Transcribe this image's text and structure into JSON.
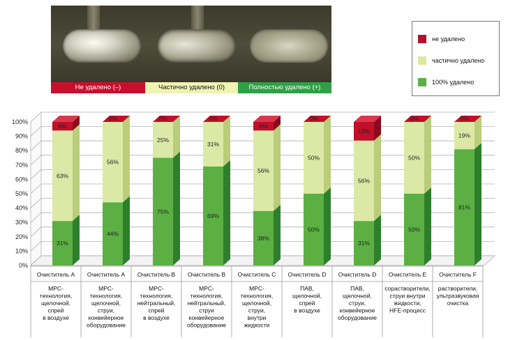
{
  "photo_labels": [
    {
      "text": "Не удалено (–)",
      "color": "#c8102e",
      "text_color": "#ffffff"
    },
    {
      "text": "Частично удалено (0)",
      "color": "#f0f3b3",
      "text_color": "#111111"
    },
    {
      "text": "Полностью удалено (+)",
      "color": "#2fa046",
      "text_color": "#ffffff"
    }
  ],
  "legend": [
    {
      "text": "не удалено",
      "color": "#b4102a"
    },
    {
      "text": "частично удалено",
      "color": "#dbe8a0"
    },
    {
      "text": "100% удалено",
      "color": "#5cb043"
    }
  ],
  "colors": {
    "red_front": "#c0102a",
    "red_side": "#8c0a1e",
    "red_top": "#d8384e",
    "light_front": "#dce9a6",
    "light_side": "#b9cd7a",
    "light_top": "#eef5c8",
    "green_front": "#5cb043",
    "green_side": "#2d7f2c",
    "green_top": "#7fc867",
    "grid": "#b0b0b0"
  },
  "chart_data": {
    "type": "bar",
    "stacked": true,
    "percent": true,
    "ylim": [
      0,
      100
    ],
    "yticks": [
      "0%",
      "10%",
      "20%",
      "30%",
      "40%",
      "50%",
      "60%",
      "70%",
      "80%",
      "90%",
      "100%"
    ],
    "categories": [
      {
        "name": "Очиститель A",
        "desc": [
          "MPC-",
          "технология,",
          "щелочной,",
          "спрей",
          "в воздухе"
        ]
      },
      {
        "name": "Очиститель A",
        "desc": [
          "MPC-",
          "технология,",
          "щелочной,",
          "струи,",
          "конвейерное",
          "оборудование"
        ]
      },
      {
        "name": "Очиститель B",
        "desc": [
          "MPC-",
          "технология,",
          "нейтральный,",
          "спрей",
          "в воздухе"
        ]
      },
      {
        "name": "Очиститель B",
        "desc": [
          "MPC-",
          "технология,",
          "нейтральный,",
          "струи",
          "конвейерное",
          "оборудование"
        ]
      },
      {
        "name": "Очиститель C",
        "desc": [
          "MPC-",
          "технология,",
          "щелочной,",
          "струи,",
          "внутри",
          "жидкости"
        ]
      },
      {
        "name": "Очиститель D",
        "desc": [
          "ПАВ,",
          "щелочной,",
          "спрей",
          "в воздухе"
        ]
      },
      {
        "name": "Очиститель D",
        "desc": [
          "ПАВ,",
          "щелочной,",
          "струи,",
          "конвейерное",
          "оборудование"
        ]
      },
      {
        "name": "Очиститель E",
        "desc": [
          "сорастворители,",
          "струи внутри",
          "жидкости,",
          "HFE-процесс"
        ]
      },
      {
        "name": "Очиститель F",
        "desc": [
          "растворители,",
          "ультразвуковая",
          "очистка"
        ]
      }
    ],
    "series": [
      {
        "name": "100% удалено",
        "values": [
          31,
          44,
          75,
          69,
          38,
          50,
          31,
          50,
          81
        ],
        "labels": [
          "31%",
          "44%",
          "75%",
          "69%",
          "38%",
          "50%",
          "31%",
          "50%",
          "81%"
        ]
      },
      {
        "name": "частично удалено",
        "values": [
          63,
          56,
          25,
          31,
          56,
          50,
          56,
          50,
          19
        ],
        "labels": [
          "63%",
          "56%",
          "25%",
          "31%",
          "56%",
          "50%",
          "56%",
          "50%",
          "19%"
        ]
      },
      {
        "name": "не удалено",
        "values": [
          6,
          0,
          0,
          0,
          6,
          0,
          13,
          0,
          0
        ],
        "labels": [
          "6%",
          "0%",
          "0%",
          "0%",
          "6%",
          "0%",
          "13%",
          "0%",
          "0%"
        ]
      }
    ]
  }
}
